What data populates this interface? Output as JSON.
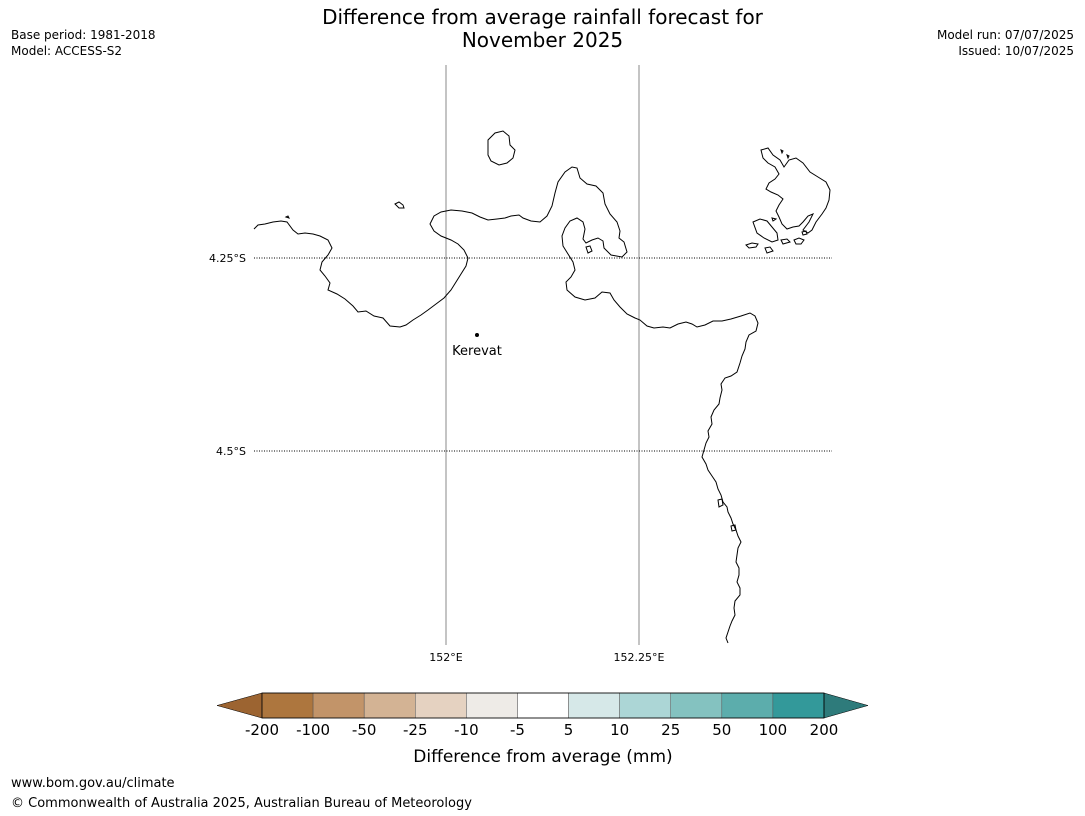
{
  "header": {
    "title_line1": "Difference from average rainfall forecast for",
    "title_line2": "November 2025",
    "base_period": "Base period: 1981-2018",
    "model": "Model: ACCESS-S2",
    "model_run": "Model run: 07/07/2025",
    "issued": "Issued: 10/07/2025"
  },
  "map": {
    "lat_labels": [
      "4.25°S",
      "4.5°S"
    ],
    "lon_labels": [
      "152°E",
      "152.25°E"
    ],
    "places": [
      {
        "name": "Kerevat"
      }
    ],
    "coastline_color": "#000000",
    "fill_category": "-5 to 5 (no shading)"
  },
  "legend": {
    "title": "Difference from average (mm)",
    "tick_labels": [
      "-200",
      "-100",
      "-50",
      "-25",
      "-10",
      "-5",
      "5",
      "10",
      "25",
      "50",
      "100",
      "200"
    ],
    "colors": [
      "#9c6431",
      "#ad763e",
      "#c29469",
      "#d3b394",
      "#e5d2c1",
      "#eeebe7",
      "#ffffff",
      "#d6e8e8",
      "#acd6d6",
      "#84c2c0",
      "#5cadac",
      "#33999a",
      "#2e7b7b"
    ]
  },
  "footer": {
    "url": "www.bom.gov.au/climate",
    "copyright": "© Commonwealth of Australia 2025, Australian Bureau of Meteorology"
  }
}
